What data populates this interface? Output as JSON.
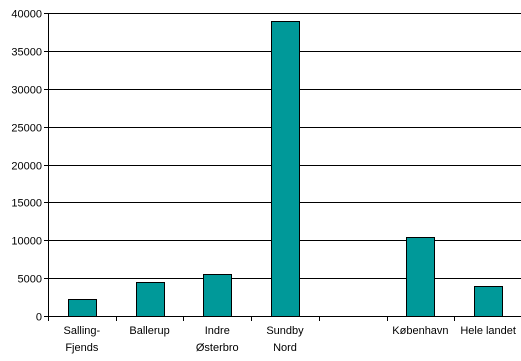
{
  "chart_data": {
    "type": "bar",
    "categories": [
      [
        "Salling-",
        "Fjends"
      ],
      [
        "Ballerup"
      ],
      [
        "Indre",
        "Østerbro"
      ],
      [
        "Sundby",
        "Nord"
      ],
      [
        ""
      ],
      [
        "København"
      ],
      [
        "Hele landet"
      ]
    ],
    "values": [
      2300,
      4500,
      5500,
      39000,
      null,
      10400,
      3900
    ],
    "title": "",
    "xlabel": "",
    "ylabel": "",
    "ylim": [
      0,
      40000
    ],
    "yticks": [
      "0",
      "5000",
      "10000",
      "15000",
      "20000",
      "25000",
      "30000",
      "35000",
      "40000"
    ],
    "grid": "horizontal",
    "legend": "none",
    "colors": {
      "bar": "#009999",
      "bar_stroke": "#000000",
      "grid": "#000000",
      "axis": "#000000"
    }
  }
}
